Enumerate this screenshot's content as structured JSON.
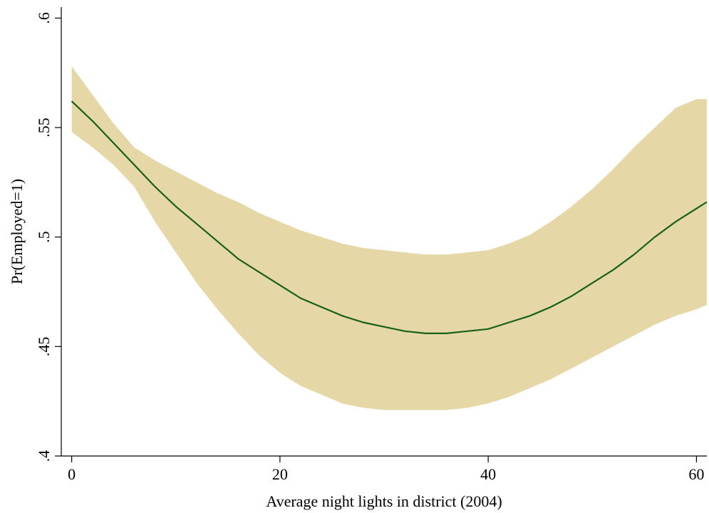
{
  "chart_data": {
    "type": "line",
    "title": "",
    "xlabel": "Average night lights in district (2004)",
    "ylabel": "Pr(Employed=1)",
    "xlim": [
      -1,
      61
    ],
    "ylim": [
      0.4,
      0.605
    ],
    "x_ticks": [
      {
        "value": 0,
        "label": "0"
      },
      {
        "value": 20,
        "label": "20"
      },
      {
        "value": 40,
        "label": "40"
      },
      {
        "value": 60,
        "label": "60"
      }
    ],
    "y_ticks": [
      {
        "value": 0.4,
        "label": ".4"
      },
      {
        "value": 0.45,
        "label": ".45"
      },
      {
        "value": 0.5,
        "label": ".5"
      },
      {
        "value": 0.55,
        "label": ".55"
      },
      {
        "value": 0.6,
        "label": ".6"
      }
    ],
    "grid": false,
    "series": [
      {
        "x": [
          0,
          2,
          4,
          6,
          8,
          10,
          12,
          14,
          16,
          18,
          20,
          22,
          24,
          26,
          28,
          30,
          32,
          34,
          36,
          38,
          40,
          42,
          44,
          46,
          48,
          50,
          52,
          54,
          56,
          58,
          60,
          61
        ],
        "y": [
          0.562,
          0.553,
          0.543,
          0.533,
          0.523,
          0.514,
          0.506,
          0.498,
          0.49,
          0.484,
          0.478,
          0.472,
          0.468,
          0.464,
          0.461,
          0.459,
          0.457,
          0.456,
          0.456,
          0.457,
          0.458,
          0.461,
          0.464,
          0.468,
          0.473,
          0.479,
          0.485,
          0.492,
          0.5,
          0.507,
          0.513,
          0.516
        ],
        "lower": [
          0.548,
          0.541,
          0.533,
          0.523,
          0.507,
          0.493,
          0.479,
          0.467,
          0.456,
          0.446,
          0.438,
          0.432,
          0.428,
          0.424,
          0.422,
          0.421,
          0.421,
          0.421,
          0.421,
          0.422,
          0.424,
          0.427,
          0.431,
          0.435,
          0.44,
          0.445,
          0.45,
          0.455,
          0.46,
          0.464,
          0.467,
          0.469
        ],
        "upper": [
          0.578,
          0.565,
          0.552,
          0.541,
          0.535,
          0.53,
          0.525,
          0.52,
          0.516,
          0.511,
          0.507,
          0.503,
          0.5,
          0.497,
          0.495,
          0.494,
          0.493,
          0.492,
          0.492,
          0.493,
          0.494,
          0.497,
          0.501,
          0.507,
          0.514,
          0.522,
          0.531,
          0.541,
          0.55,
          0.559,
          0.563,
          0.563
        ],
        "line_color": "#17601a",
        "band_color": "#e6d7a6"
      }
    ]
  }
}
